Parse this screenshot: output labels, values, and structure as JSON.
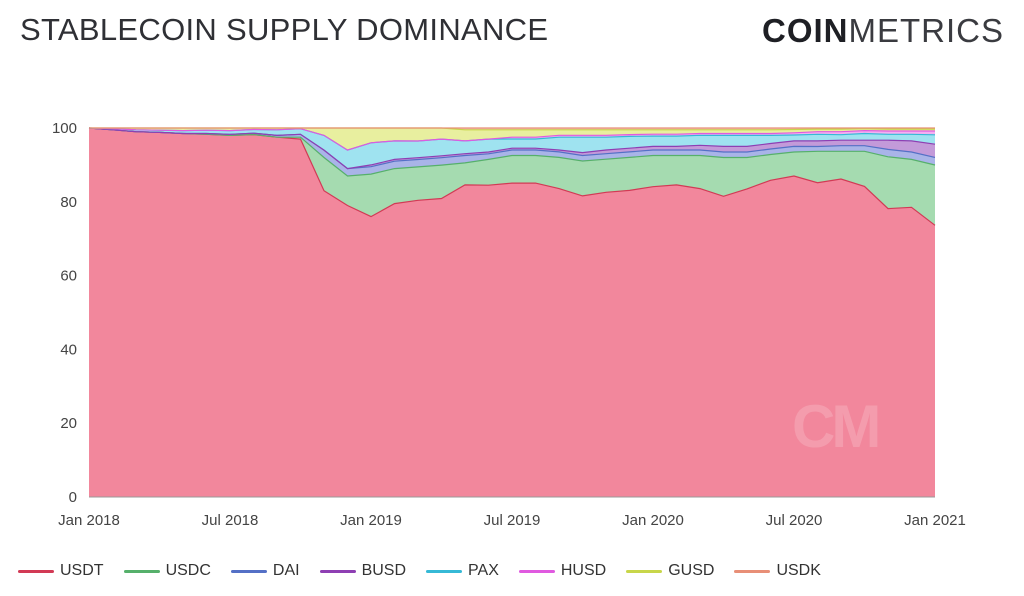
{
  "header": {
    "title": "STABLECOIN SUPPLY DOMINANCE",
    "brand_bold": "COIN",
    "brand_light": "METRICS"
  },
  "watermark": "CM",
  "chart_data": {
    "type": "area",
    "stacked": true,
    "title": "STABLECOIN SUPPLY DOMINANCE",
    "xlabel": "",
    "ylabel": "",
    "ylim": [
      0,
      100
    ],
    "yticks": [
      0,
      20,
      40,
      60,
      80,
      100
    ],
    "xticks": [
      {
        "label": "Jan 2018",
        "t": 0
      },
      {
        "label": "Jul 2018",
        "t": 6
      },
      {
        "label": "Jan 2019",
        "t": 12
      },
      {
        "label": "Jul 2019",
        "t": 18
      },
      {
        "label": "Jan 2020",
        "t": 24
      },
      {
        "label": "Jul 2020",
        "t": 30
      },
      {
        "label": "Jan 2021",
        "t": 36
      }
    ],
    "x_months": [
      0,
      1,
      2,
      3,
      4,
      5,
      6,
      7,
      8,
      9,
      10,
      11,
      12,
      13,
      14,
      15,
      16,
      17,
      18,
      19,
      20,
      21,
      22,
      23,
      24,
      25,
      26,
      27,
      28,
      29,
      30,
      31,
      32,
      33,
      34,
      35,
      36
    ],
    "series": [
      {
        "name": "USDT",
        "color": "#f2879c",
        "line": "#d23a55",
        "values": [
          100,
          99.5,
          99,
          98.8,
          98.5,
          98.3,
          98,
          98.2,
          97.5,
          97,
          83,
          79,
          76,
          79.5,
          80,
          80.5,
          85,
          84.5,
          85.5,
          85.5,
          84,
          82,
          83,
          83.5,
          84.5,
          85,
          84,
          81.5,
          83.5,
          86,
          87,
          85,
          86,
          84,
          78,
          78.5,
          72
        ]
      },
      {
        "name": "USDC",
        "color": "#a5dbb0",
        "line": "#56b06b",
        "values": [
          0,
          0,
          0,
          0,
          0,
          0,
          0,
          0,
          0,
          0.5,
          9,
          8,
          11.5,
          9.5,
          9,
          9,
          6,
          7,
          7.5,
          7.5,
          8.5,
          9.5,
          9,
          9,
          8.5,
          8,
          9,
          10.5,
          8.5,
          7,
          6.5,
          8.5,
          7.5,
          9.5,
          14,
          13,
          16
        ]
      },
      {
        "name": "DAI",
        "color": "#a9b4e8",
        "line": "#5470c6",
        "values": [
          0,
          0,
          0,
          0,
          0,
          0.2,
          0.3,
          0.4,
          0.5,
          0.8,
          2,
          2,
          2,
          2,
          2,
          2,
          2,
          1.5,
          1.5,
          1.5,
          1.5,
          1.5,
          1.5,
          1.5,
          1.5,
          1.5,
          1.5,
          1.5,
          1.5,
          1.5,
          1.5,
          1.3,
          1.5,
          1.5,
          2,
          2,
          2
        ]
      },
      {
        "name": "BUSD",
        "color": "#c39ad9",
        "line": "#8e3fb3",
        "values": [
          0,
          0,
          0,
          0,
          0,
          0,
          0,
          0,
          0,
          0,
          0,
          0,
          0.5,
          0.5,
          0.5,
          0.5,
          0.5,
          0.5,
          0.5,
          0.5,
          0.5,
          0.8,
          1,
          1,
          1,
          1,
          1.3,
          1.5,
          1.5,
          1.5,
          1.5,
          1.5,
          1.5,
          1.5,
          2.5,
          3,
          3.5
        ]
      },
      {
        "name": "PAX",
        "color": "#9fe3f0",
        "line": "#36b9d6",
        "values": [
          0,
          0.3,
          0.5,
          0.6,
          0.8,
          0.9,
          1,
          1,
          1.5,
          1.5,
          4,
          5,
          6,
          5,
          4.5,
          4.5,
          3.5,
          3.5,
          2.5,
          2.5,
          3.5,
          4.2,
          3.5,
          3.2,
          2.8,
          2.8,
          2.7,
          3,
          3,
          2.2,
          1.6,
          1.8,
          1.5,
          1.8,
          1.6,
          1.8,
          2.5
        ]
      },
      {
        "name": "HUSD",
        "color": "#f3b0f0",
        "line": "#e05ae0",
        "values": [
          0,
          0,
          0,
          0,
          0,
          0,
          0,
          0,
          0,
          0,
          0,
          0,
          0,
          0,
          0,
          0,
          0,
          0,
          0.5,
          0.5,
          0.5,
          0.5,
          0.5,
          0.5,
          0.5,
          0.5,
          0.5,
          0.5,
          0.5,
          0.5,
          0.6,
          0.7,
          0.8,
          0.8,
          0.9,
          0.9,
          1
        ]
      },
      {
        "name": "GUSD",
        "color": "#e8ef9f",
        "line": "#c8d64a",
        "values": [
          0,
          0.2,
          0.5,
          0.6,
          0.7,
          0.6,
          0.7,
          0.4,
          0.5,
          0.2,
          2,
          6,
          4,
          3.5,
          3.5,
          3,
          3,
          2.5,
          2,
          2,
          1.5,
          1.5,
          1.5,
          1.3,
          1.2,
          1.2,
          1,
          1,
          1,
          1,
          0.9,
          0.7,
          0.7,
          0.5,
          0.5,
          0.5,
          0.5
        ]
      },
      {
        "name": "USDK",
        "color": "#f5c2b3",
        "line": "#e88f77",
        "values": [
          0,
          0,
          0,
          0,
          0,
          0,
          0,
          0,
          0,
          0,
          0,
          0,
          0,
          0,
          0,
          0,
          0.5,
          0.5,
          0.5,
          0.5,
          0.5,
          0.5,
          0.5,
          0.5,
          0.5,
          0.5,
          0.5,
          0.5,
          0.5,
          0.5,
          0.4,
          0.3,
          0.3,
          0.2,
          0.3,
          0.3,
          0.3
        ]
      }
    ],
    "legend": {
      "position": "bottom-left"
    },
    "grid": true
  }
}
